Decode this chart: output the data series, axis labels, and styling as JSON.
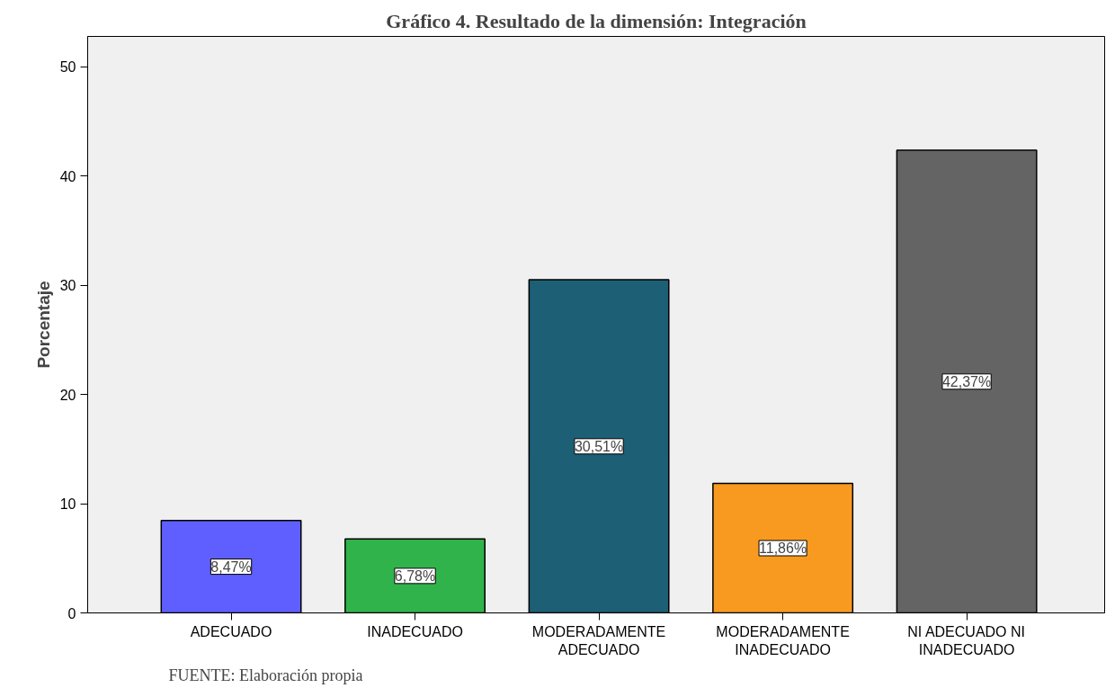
{
  "chart_data": {
    "type": "bar",
    "title": "Gráfico 4. Resultado de la dimensión: Integración",
    "ylabel": "Porcentaje",
    "categories": [
      "ADECUADO",
      "INADECUADO",
      "MODERADAMENTE ADECUADO",
      "MODERADAMENTE INADECUADO",
      "NI ADECUADO NI INADECUADO"
    ],
    "values": [
      8.47,
      6.78,
      30.51,
      11.86,
      42.37
    ],
    "colors": [
      "#5f5fff",
      "#30b34b",
      "#1d5f75",
      "#f79a1f",
      "#646464"
    ],
    "value_labels": [
      "8,47%",
      "6,78%",
      "30,51%",
      "11,86%",
      "42,37%"
    ],
    "ylim": [
      0,
      52.8
    ],
    "yticks": [
      0,
      10,
      20,
      30,
      40,
      50
    ],
    "grid": false,
    "annotations": [
      "FUENTE: Elaboración propia"
    ]
  }
}
